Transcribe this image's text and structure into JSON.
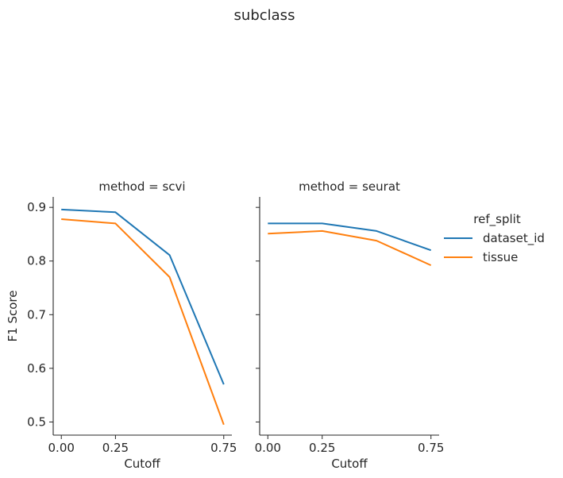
{
  "figure": {
    "title": "subclass"
  },
  "legend": {
    "title": "ref_split",
    "placement": "right"
  },
  "chart_data": [
    {
      "type": "line",
      "title": "method = scvi",
      "xlabel": "Cutoff",
      "ylabel": "F1 Score",
      "x": [
        0.0,
        0.25,
        0.5,
        0.75
      ],
      "xticks": [
        "0.00",
        "0.25",
        "0.75"
      ],
      "yticks": [
        "0.5",
        "0.6",
        "0.7",
        "0.8",
        "0.9"
      ],
      "xlim": [
        -0.0375,
        0.7875
      ],
      "ylim": [
        0.4755,
        0.9195
      ],
      "grid": false,
      "series": [
        {
          "name": "dataset_id",
          "color": "#1f77b4",
          "values": [
            0.896,
            0.891,
            0.811,
            0.57
          ]
        },
        {
          "name": "tissue",
          "color": "#ff7f0e",
          "values": [
            0.878,
            0.87,
            0.77,
            0.495
          ]
        }
      ]
    },
    {
      "type": "line",
      "title": "method = seurat",
      "xlabel": "Cutoff",
      "ylabel": "",
      "x": [
        0.0,
        0.25,
        0.5,
        0.75
      ],
      "xticks": [
        "0.00",
        "0.25",
        "0.75"
      ],
      "yticks": [
        "0.5",
        "0.6",
        "0.7",
        "0.8",
        "0.9"
      ],
      "xlim": [
        -0.0375,
        0.7875
      ],
      "ylim": [
        0.4755,
        0.9195
      ],
      "grid": false,
      "series": [
        {
          "name": "dataset_id",
          "color": "#1f77b4",
          "values": [
            0.87,
            0.87,
            0.856,
            0.82
          ]
        },
        {
          "name": "tissue",
          "color": "#ff7f0e",
          "values": [
            0.851,
            0.856,
            0.838,
            0.792
          ]
        }
      ]
    }
  ]
}
